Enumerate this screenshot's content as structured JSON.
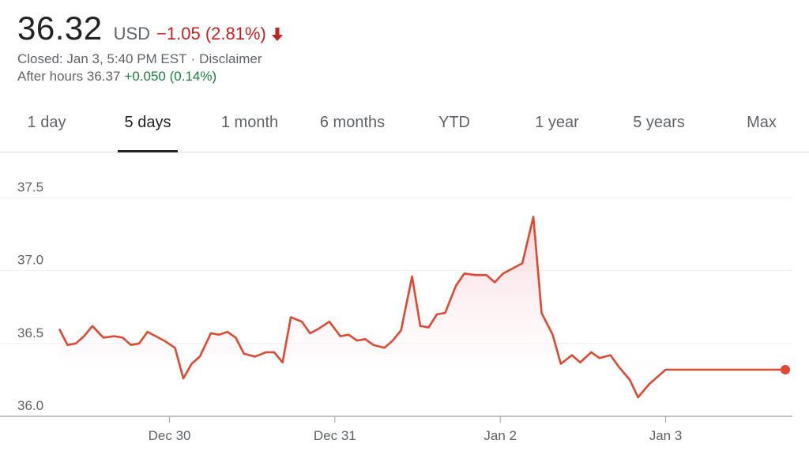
{
  "quote": {
    "price": "36.32",
    "currency": "USD",
    "change": "−1.05 (2.81%)",
    "closed": "Closed: Jan 3, 5:40 PM EST",
    "separator": "·",
    "disclaimer": "Disclaimer",
    "after_hours_label": "After hours 36.37",
    "after_hours_change": "+0.050 (0.14%)"
  },
  "tabs": [
    {
      "label": "1 day"
    },
    {
      "label": "5 days"
    },
    {
      "label": "1 month"
    },
    {
      "label": "6 months"
    },
    {
      "label": "YTD"
    },
    {
      "label": "1 year"
    },
    {
      "label": "5 years"
    },
    {
      "label": "Max"
    }
  ],
  "colors": {
    "down": "#c5221f",
    "up": "#188038",
    "line": "#e0482f",
    "fill": "#fbe3e6"
  },
  "chart_data": {
    "type": "line",
    "title": "",
    "xlabel": "",
    "ylabel": "",
    "ylim": [
      36.0,
      37.6
    ],
    "yticks": [
      36.0,
      36.5,
      37.0,
      37.5
    ],
    "xticks": [
      "Dec 30",
      "Dec 31",
      "Jan 2",
      "Jan 3"
    ],
    "xticks_index": [
      3,
      6,
      9,
      12
    ],
    "grid": true,
    "x": [
      1.0,
      1.15,
      1.3,
      1.45,
      1.6,
      1.8,
      2.0,
      2.15,
      2.3,
      2.45,
      2.6,
      2.75,
      2.9,
      3.1,
      3.25,
      3.4,
      3.55,
      3.75,
      3.9,
      4.05,
      4.2,
      4.35,
      4.55,
      4.75,
      4.9,
      5.05,
      5.2,
      5.4,
      5.55,
      5.7,
      5.9,
      6.1,
      6.25,
      6.4,
      6.55,
      6.7,
      6.9,
      7.05,
      7.2,
      7.4,
      7.55,
      7.7,
      7.85,
      8.0,
      8.2,
      8.35,
      8.55,
      8.75,
      8.9,
      9.05,
      9.25,
      9.4,
      9.6,
      9.75,
      9.95,
      10.1,
      10.3,
      10.45,
      10.65,
      10.8,
      11.0,
      11.15,
      11.35,
      11.5,
      11.7,
      11.85,
      12.0,
      12.15,
      12.3,
      12.45,
      12.6,
      12.75,
      12.95,
      13.1,
      13.3,
      13.45,
      13.65,
      13.85,
      14.0,
      14.15,
      14.3
    ],
    "values": [
      36.6,
      36.49,
      36.5,
      36.55,
      36.62,
      36.54,
      36.55,
      36.54,
      36.49,
      36.5,
      36.58,
      36.55,
      36.52,
      36.47,
      36.26,
      36.36,
      36.41,
      36.57,
      36.56,
      36.58,
      36.54,
      36.43,
      36.41,
      36.44,
      36.44,
      36.37,
      36.68,
      36.65,
      36.57,
      36.6,
      36.65,
      36.55,
      36.56,
      36.52,
      36.53,
      36.49,
      36.47,
      36.52,
      36.59,
      36.96,
      36.62,
      36.61,
      36.7,
      36.71,
      36.9,
      36.98,
      36.97,
      36.97,
      36.92,
      36.98,
      37.02,
      37.05,
      37.37,
      36.71,
      36.56,
      36.36,
      36.42,
      36.37,
      36.44,
      36.4,
      36.42,
      36.34,
      36.25,
      36.13,
      36.22,
      36.27,
      36.32,
      36.32,
      36.32,
      36.32,
      36.32,
      36.32,
      36.32,
      36.32,
      36.32,
      36.32,
      36.32,
      36.32,
      36.32,
      36.32,
      36.32
    ],
    "last_value": 36.32
  }
}
